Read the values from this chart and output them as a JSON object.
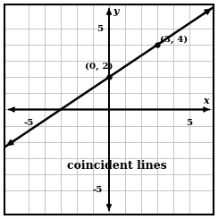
{
  "xlim": [
    -6.5,
    6.5
  ],
  "ylim": [
    -6.5,
    6.5
  ],
  "x_label": "x",
  "y_label": "y",
  "slope": 0.6667,
  "intercept": 2,
  "point1": [
    0,
    2
  ],
  "point2": [
    3,
    4
  ],
  "point1_label": "(0, 2)",
  "point2_label": "(3, 4)",
  "annotation_label": "coincident lines",
  "line_color": "#000000",
  "background_color": "#ffffff",
  "grid_color": "#bbbbbb",
  "border_color": "#000000",
  "font_size": 7.5,
  "label_font_size": 8,
  "annotation_font_size": 9,
  "tick_label_size": 7.5
}
